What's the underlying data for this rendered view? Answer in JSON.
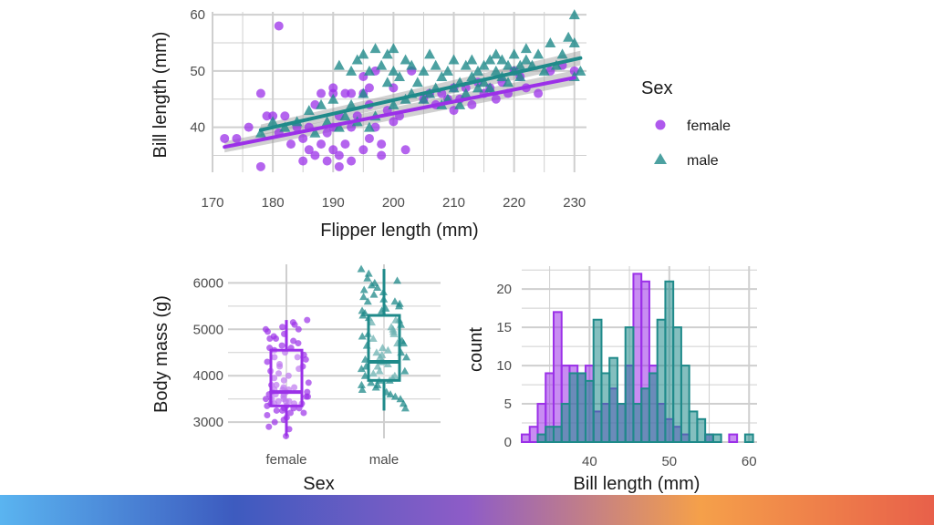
{
  "colors": {
    "female": "#9b30e8",
    "male": "#1f8a8a",
    "grid": "#cfcfcf",
    "band": "#9a9a9a"
  },
  "bottom_bar_gradient": [
    "#5ab4f0",
    "#3d5bbf",
    "#8e5cc7",
    "#f5a04a",
    "#e8604a"
  ],
  "chart_data": [
    {
      "type": "scatter",
      "xlabel": "Flipper length (mm)",
      "ylabel": "Bill length (mm)",
      "xlim": [
        170,
        232
      ],
      "ylim": [
        32,
        60.5
      ],
      "xticks": [
        170,
        180,
        190,
        200,
        210,
        220,
        230
      ],
      "yticks": [
        40,
        50,
        60
      ],
      "grid": true,
      "legend": {
        "title": "Sex",
        "placement": "right",
        "entries": [
          {
            "label": "female",
            "shape": "circle"
          },
          {
            "label": "male",
            "shape": "triangle"
          }
        ]
      },
      "series": [
        {
          "name": "female",
          "marker": "circle",
          "trend": {
            "x": [
              172,
              230
            ],
            "y": [
              36.5,
              48.8
            ]
          },
          "points": [
            [
              172,
              38
            ],
            [
              174,
              38
            ],
            [
              176,
              40
            ],
            [
              178,
              46
            ],
            [
              178,
              33
            ],
            [
              179,
              42
            ],
            [
              180,
              42
            ],
            [
              181,
              58
            ],
            [
              181,
              39
            ],
            [
              182,
              42
            ],
            [
              183,
              37
            ],
            [
              184,
              40
            ],
            [
              185,
              34
            ],
            [
              185,
              38
            ],
            [
              186,
              36
            ],
            [
              186,
              40
            ],
            [
              187,
              35
            ],
            [
              187,
              44
            ],
            [
              188,
              46
            ],
            [
              188,
              37
            ],
            [
              189,
              34
            ],
            [
              189,
              39
            ],
            [
              190,
              36
            ],
            [
              190,
              40
            ],
            [
              190,
              46
            ],
            [
              190,
              47
            ],
            [
              191,
              35
            ],
            [
              191,
              42
            ],
            [
              191,
              33
            ],
            [
              192,
              37
            ],
            [
              192,
              46
            ],
            [
              193,
              40
            ],
            [
              193,
              46
            ],
            [
              193,
              34
            ],
            [
              194,
              42
            ],
            [
              195,
              36
            ],
            [
              195,
              46
            ],
            [
              195,
              49
            ],
            [
              196,
              38
            ],
            [
              196,
              44
            ],
            [
              196,
              47
            ],
            [
              197,
              50
            ],
            [
              197,
              40
            ],
            [
              198,
              37
            ],
            [
              198,
              35
            ],
            [
              199,
              43
            ],
            [
              200,
              41
            ],
            [
              200,
              47
            ],
            [
              201,
              42
            ],
            [
              202,
              36
            ],
            [
              203,
              50
            ],
            [
              205,
              45
            ],
            [
              206,
              46
            ],
            [
              207,
              44
            ],
            [
              208,
              46
            ],
            [
              209,
              45
            ],
            [
              210,
              43
            ],
            [
              210,
              47
            ],
            [
              211,
              45
            ],
            [
              212,
              47
            ],
            [
              213,
              44
            ],
            [
              214,
              48
            ],
            [
              215,
              46
            ],
            [
              216,
              47
            ],
            [
              217,
              45
            ],
            [
              218,
              48
            ],
            [
              219,
              46
            ],
            [
              220,
              50
            ],
            [
              221,
              49
            ],
            [
              222,
              47
            ],
            [
              224,
              46
            ],
            [
              226,
              50
            ],
            [
              228,
              51
            ],
            [
              230,
              50
            ]
          ]
        },
        {
          "name": "male",
          "marker": "triangle",
          "trend": {
            "x": [
              178,
              231
            ],
            "y": [
              39.5,
              52.3
            ]
          },
          "points": [
            [
              178,
              39
            ],
            [
              180,
              41
            ],
            [
              182,
              40
            ],
            [
              184,
              41
            ],
            [
              186,
              43
            ],
            [
              187,
              39
            ],
            [
              188,
              44
            ],
            [
              189,
              41
            ],
            [
              190,
              45
            ],
            [
              191,
              40
            ],
            [
              191,
              51
            ],
            [
              192,
              42
            ],
            [
              193,
              44
            ],
            [
              193,
              50
            ],
            [
              194,
              41
            ],
            [
              194,
              52
            ],
            [
              195,
              46
            ],
            [
              195,
              53
            ],
            [
              196,
              40
            ],
            [
              196,
              50
            ],
            [
              197,
              42
            ],
            [
              197,
              54
            ],
            [
              198,
              51
            ],
            [
              199,
              48
            ],
            [
              199,
              53
            ],
            [
              200,
              44
            ],
            [
              200,
              50
            ],
            [
              200,
              54
            ],
            [
              201,
              49
            ],
            [
              202,
              45
            ],
            [
              202,
              52
            ],
            [
              203,
              46
            ],
            [
              203,
              51
            ],
            [
              204,
              48
            ],
            [
              205,
              50
            ],
            [
              205,
              45
            ],
            [
              206,
              46
            ],
            [
              206,
              53
            ],
            [
              207,
              47
            ],
            [
              207,
              51
            ],
            [
              208,
              44
            ],
            [
              208,
              49
            ],
            [
              209,
              50
            ],
            [
              209,
              45
            ],
            [
              210,
              47
            ],
            [
              210,
              52
            ],
            [
              211,
              48
            ],
            [
              211,
              44
            ],
            [
              212,
              51
            ],
            [
              212,
              46
            ],
            [
              213,
              49
            ],
            [
              213,
              52
            ],
            [
              214,
              50
            ],
            [
              214,
              47
            ],
            [
              215,
              51
            ],
            [
              215,
              48
            ],
            [
              216,
              52
            ],
            [
              216,
              47
            ],
            [
              217,
              50
            ],
            [
              217,
              53
            ],
            [
              218,
              49
            ],
            [
              218,
              52
            ],
            [
              219,
              51
            ],
            [
              219,
              48
            ],
            [
              220,
              53
            ],
            [
              220,
              50
            ],
            [
              221,
              51
            ],
            [
              221,
              49
            ],
            [
              222,
              52
            ],
            [
              222,
              54
            ],
            [
              223,
              51
            ],
            [
              224,
              53
            ],
            [
              225,
              50
            ],
            [
              226,
              55
            ],
            [
              227,
              51
            ],
            [
              228,
              53
            ],
            [
              229,
              56
            ],
            [
              230,
              55
            ],
            [
              230,
              49
            ],
            [
              230,
              60
            ],
            [
              231,
              50
            ]
          ]
        }
      ]
    },
    {
      "type": "box",
      "xlabel": "Sex",
      "ylabel": "Body mass (g)",
      "categories": [
        "female",
        "male"
      ],
      "ylim": [
        2650,
        6400
      ],
      "yticks": [
        3000,
        4000,
        5000,
        6000
      ],
      "grid": true,
      "boxes": [
        {
          "name": "female",
          "whisker_low": 2700,
          "q1": 3350,
          "median": 3650,
          "q3": 4550,
          "whisker_high": 5200
        },
        {
          "name": "male",
          "whisker_low": 3250,
          "q1": 3900,
          "median": 4300,
          "q3": 5300,
          "whisker_high": 6300
        }
      ],
      "jitter": {
        "female": [
          2700,
          2850,
          2900,
          3000,
          3050,
          3100,
          3150,
          3200,
          3200,
          3250,
          3250,
          3300,
          3300,
          3350,
          3350,
          3400,
          3400,
          3400,
          3450,
          3450,
          3500,
          3500,
          3550,
          3550,
          3600,
          3600,
          3650,
          3650,
          3700,
          3700,
          3750,
          3800,
          3800,
          3850,
          3900,
          3950,
          4000,
          4050,
          4100,
          4150,
          4200,
          4250,
          4300,
          4350,
          4400,
          4450,
          4500,
          4550,
          4600,
          4650,
          4700,
          4750,
          4800,
          4850,
          4900,
          4950,
          5000,
          5050,
          5100,
          5150,
          5200,
          3450,
          3550,
          3650,
          3750,
          3400,
          3300,
          3500,
          3600,
          3700,
          4400,
          4600,
          4800,
          5000,
          4200
        ],
        "male": [
          3300,
          3400,
          3500,
          3550,
          3600,
          3650,
          3700,
          3750,
          3800,
          3850,
          3900,
          3950,
          4000,
          4050,
          4100,
          4150,
          4200,
          4250,
          4300,
          4350,
          4400,
          4450,
          4500,
          4550,
          4600,
          4650,
          4700,
          4750,
          4800,
          4850,
          4900,
          4950,
          5000,
          5050,
          5100,
          5150,
          5200,
          5250,
          5300,
          5350,
          5400,
          5450,
          5500,
          5550,
          5600,
          5650,
          5700,
          5750,
          5800,
          5850,
          5900,
          5950,
          6000,
          6050,
          6100,
          6200,
          6300,
          3900,
          4000,
          4100,
          4200,
          4300,
          4400,
          3800,
          5200,
          5400,
          5600,
          4500,
          4700,
          4900
        ]
      }
    },
    {
      "type": "histogram",
      "xlabel": "Bill length (mm)",
      "ylabel": "count",
      "xlim": [
        31.5,
        61
      ],
      "ylim": [
        0,
        23
      ],
      "xticks": [
        40,
        50,
        60
      ],
      "yticks": [
        0,
        5,
        10,
        15,
        20
      ],
      "grid": true,
      "bin_width": 1,
      "series": [
        {
          "name": "female",
          "bins": [
            {
              "x": 32,
              "count": 1
            },
            {
              "x": 33,
              "count": 2
            },
            {
              "x": 34,
              "count": 5
            },
            {
              "x": 35,
              "count": 9
            },
            {
              "x": 36,
              "count": 17
            },
            {
              "x": 37,
              "count": 10
            },
            {
              "x": 38,
              "count": 10
            },
            {
              "x": 39,
              "count": 9
            },
            {
              "x": 40,
              "count": 10
            },
            {
              "x": 41,
              "count": 4
            },
            {
              "x": 42,
              "count": 5
            },
            {
              "x": 43,
              "count": 7
            },
            {
              "x": 44,
              "count": 5
            },
            {
              "x": 45,
              "count": 10
            },
            {
              "x": 46,
              "count": 22
            },
            {
              "x": 47,
              "count": 21
            },
            {
              "x": 48,
              "count": 10
            },
            {
              "x": 49,
              "count": 5
            },
            {
              "x": 50,
              "count": 3
            },
            {
              "x": 51,
              "count": 2
            },
            {
              "x": 52,
              "count": 1
            },
            {
              "x": 55,
              "count": 1
            },
            {
              "x": 58,
              "count": 1
            }
          ]
        },
        {
          "name": "male",
          "bins": [
            {
              "x": 34,
              "count": 1
            },
            {
              "x": 35,
              "count": 2
            },
            {
              "x": 36,
              "count": 2
            },
            {
              "x": 37,
              "count": 5
            },
            {
              "x": 38,
              "count": 9
            },
            {
              "x": 39,
              "count": 9
            },
            {
              "x": 40,
              "count": 8
            },
            {
              "x": 41,
              "count": 16
            },
            {
              "x": 42,
              "count": 9
            },
            {
              "x": 43,
              "count": 11
            },
            {
              "x": 44,
              "count": 5
            },
            {
              "x": 45,
              "count": 15
            },
            {
              "x": 46,
              "count": 5
            },
            {
              "x": 47,
              "count": 7
            },
            {
              "x": 48,
              "count": 9
            },
            {
              "x": 49,
              "count": 16
            },
            {
              "x": 50,
              "count": 21
            },
            {
              "x": 51,
              "count": 15
            },
            {
              "x": 52,
              "count": 10
            },
            {
              "x": 53,
              "count": 4
            },
            {
              "x": 54,
              "count": 3
            },
            {
              "x": 55,
              "count": 1
            },
            {
              "x": 56,
              "count": 1
            },
            {
              "x": 60,
              "count": 1
            }
          ]
        }
      ]
    }
  ]
}
